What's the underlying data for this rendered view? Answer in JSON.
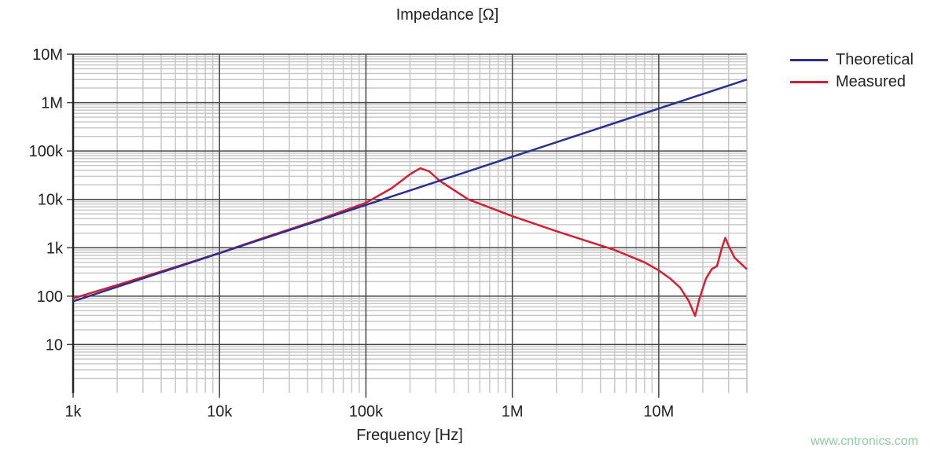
{
  "chart_data": {
    "type": "line",
    "title": "Impedance [Ω]",
    "xlabel": "Frequency [Hz]",
    "ylabel": "",
    "x_scale": "log",
    "y_scale": "log",
    "xlim": [
      1000,
      40000000
    ],
    "ylim": [
      1,
      10000000
    ],
    "grid": true,
    "legend_position": "right",
    "x_ticks": [
      {
        "v": 1000,
        "label": "1k"
      },
      {
        "v": 10000,
        "label": "10k"
      },
      {
        "v": 100000,
        "label": "100k"
      },
      {
        "v": 1000000,
        "label": "1M"
      },
      {
        "v": 10000000,
        "label": "10M"
      }
    ],
    "y_ticks": [
      {
        "v": 10,
        "label": "10"
      },
      {
        "v": 100,
        "label": "100"
      },
      {
        "v": 1000,
        "label": "1k"
      },
      {
        "v": 10000,
        "label": "10k"
      },
      {
        "v": 100000,
        "label": "100k"
      },
      {
        "v": 1000000,
        "label": "1M"
      },
      {
        "v": 10000000,
        "label": "10M"
      }
    ],
    "series": [
      {
        "name": "Theoretical",
        "color": "#2b2f8f",
        "x": [
          1000,
          40000000
        ],
        "y": [
          78,
          3000000
        ]
      },
      {
        "name": "Measured",
        "color": "#d42035",
        "x": [
          1000,
          2000,
          5000,
          10000,
          20000,
          50000,
          100000,
          150000,
          200000,
          235000,
          270000,
          320000,
          500000,
          1000000,
          2000000,
          5000000,
          8000000,
          10000000,
          12000000,
          14000000,
          16000000,
          17700000,
          19000000,
          21000000,
          23000000,
          25000000,
          27000000,
          28500000,
          30000000,
          33000000,
          40000000
        ],
        "y": [
          90,
          170,
          400,
          780,
          1600,
          4000,
          8500,
          17000,
          33000,
          44000,
          38000,
          24000,
          10000,
          4500,
          2200,
          900,
          500,
          340,
          230,
          150,
          80,
          39,
          90,
          230,
          360,
          420,
          1000,
          1600,
          1100,
          620,
          360
        ]
      }
    ]
  },
  "watermark": "www.cntronics.com"
}
